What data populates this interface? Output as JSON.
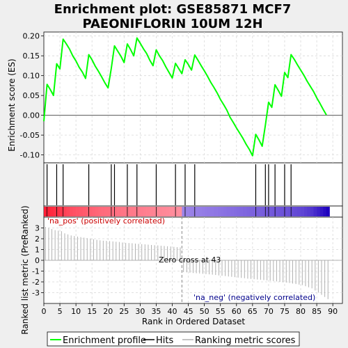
{
  "chart_data": {
    "type": "line",
    "title": [
      "Enrichment plot: GSE85871 MCF7",
      "PAEONIFLORIN 10UM 12H"
    ],
    "xlabel": "Rank in Ordered Dataset",
    "ylabel_top": "Enrichment score (ES)",
    "ylabel_bottom": "Ranked list metric (PreRanked)",
    "xlim": [
      0,
      93
    ],
    "x_ticks": [
      0,
      5,
      10,
      15,
      20,
      25,
      30,
      35,
      40,
      45,
      50,
      55,
      60,
      65,
      70,
      75,
      80,
      85,
      90
    ],
    "es_ylim": [
      -0.12,
      0.21
    ],
    "es_ticks": [
      -0.1,
      -0.05,
      0.0,
      0.05,
      0.1,
      0.15,
      0.2
    ],
    "metric_ylim": [
      -4,
      4
    ],
    "metric_ticks": [
      -3,
      -2,
      -1,
      0,
      1,
      2,
      3
    ],
    "grid": true,
    "series": [
      {
        "name": "Enrichment profile",
        "color": "#00ff00",
        "x": [
          0,
          1,
          2,
          3,
          4,
          5,
          6,
          7,
          8,
          9,
          10,
          11,
          12,
          13,
          14,
          15,
          16,
          17,
          18,
          19,
          20,
          21,
          22,
          23,
          24,
          25,
          26,
          27,
          28,
          29,
          30,
          31,
          32,
          33,
          34,
          35,
          36,
          37,
          38,
          39,
          40,
          41,
          42,
          43,
          44,
          45,
          46,
          47,
          48,
          49,
          50,
          51,
          52,
          53,
          54,
          55,
          56,
          57,
          58,
          59,
          60,
          61,
          62,
          63,
          64,
          65,
          66,
          67,
          68,
          69,
          70,
          71,
          72,
          73,
          74,
          75,
          76,
          77,
          78,
          79,
          80,
          81,
          82,
          83,
          84,
          85,
          86,
          87,
          88
        ],
        "y": [
          -0.015,
          0.078,
          0.065,
          0.05,
          0.13,
          0.117,
          0.192,
          0.18,
          0.167,
          0.15,
          0.137,
          0.121,
          0.109,
          0.093,
          0.153,
          0.14,
          0.124,
          0.111,
          0.097,
          0.082,
          0.069,
          0.118,
          0.175,
          0.162,
          0.149,
          0.133,
          0.18,
          0.166,
          0.15,
          0.195,
          0.182,
          0.168,
          0.156,
          0.139,
          0.125,
          0.165,
          0.15,
          0.138,
          0.122,
          0.108,
          0.094,
          0.131,
          0.118,
          0.105,
          0.14,
          0.128,
          0.114,
          0.152,
          0.139,
          0.125,
          0.112,
          0.098,
          0.083,
          0.07,
          0.056,
          0.04,
          0.027,
          0.013,
          -0.005,
          -0.018,
          -0.032,
          -0.045,
          -0.058,
          -0.073,
          -0.086,
          -0.102,
          -0.048,
          -0.062,
          -0.078,
          -0.025,
          0.033,
          0.02,
          0.077,
          0.063,
          0.048,
          0.108,
          0.095,
          0.153,
          0.141,
          0.127,
          0.114,
          0.101,
          0.086,
          0.073,
          0.06,
          0.044,
          0.03,
          0.015,
          0.001
        ]
      }
    ],
    "hits": [
      1,
      4,
      6,
      14,
      21,
      22,
      26,
      29,
      35,
      41,
      44,
      47,
      66,
      69,
      70,
      72,
      75,
      77
    ],
    "metric": [
      3.1,
      3.0,
      2.9,
      2.8,
      2.75,
      2.7,
      2.5,
      2.4,
      2.3,
      2.25,
      2.2,
      2.15,
      2.1,
      2.05,
      2.0,
      1.95,
      1.9,
      1.85,
      1.82,
      1.8,
      1.78,
      1.75,
      1.72,
      1.7,
      1.65,
      1.62,
      1.6,
      1.58,
      1.55,
      1.52,
      1.5,
      1.48,
      1.45,
      1.42,
      1.4,
      1.38,
      1.35,
      1.33,
      1.3,
      1.28,
      1.25,
      1.22,
      1.2,
      -1.1,
      -1.12,
      -1.15,
      -1.18,
      -1.2,
      -1.22,
      -1.25,
      -1.28,
      -1.3,
      -1.33,
      -1.36,
      -1.4,
      -1.43,
      -1.46,
      -1.5,
      -1.53,
      -1.56,
      -1.6,
      -1.63,
      -1.66,
      -1.7,
      -1.72,
      -1.75,
      -1.78,
      -1.8,
      -1.83,
      -1.86,
      -1.9,
      -1.93,
      -1.96,
      -2.0,
      -2.03,
      -2.06,
      -2.1,
      -2.15,
      -2.2,
      -2.25,
      -2.3,
      -2.4,
      -2.5,
      -2.6,
      -2.8,
      -3.0,
      -3.2,
      -3.4,
      -3.6
    ],
    "annotations": {
      "pos_label": "'na_pos' (positively correlated)",
      "neg_label": "'na_neg' (negatively correlated)",
      "zero_cross": "Zero cross at 43",
      "zero_cross_x": 43
    },
    "colors": {
      "pos": "#cc0000",
      "neg": "#00008b",
      "grid": "#d8d8d8",
      "hits": "#000000",
      "metric": "#b0b0b0"
    },
    "legend": {
      "placement": "bottom",
      "items": [
        {
          "label": "Enrichment profile",
          "color": "#00ff00",
          "kind": "line"
        },
        {
          "label": "Hits",
          "color": "#000000",
          "kind": "line"
        },
        {
          "label": "Ranking metric scores",
          "color": "#b0b0b0",
          "kind": "line"
        }
      ]
    }
  }
}
